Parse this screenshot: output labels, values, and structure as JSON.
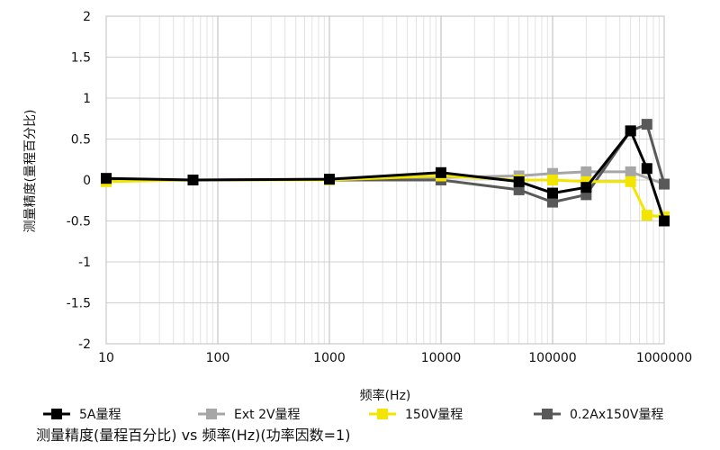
{
  "chart_data": {
    "type": "line",
    "xscale": "log",
    "caption": "测量精度(量程百分比) vs 频率(Hz)(功率因数=1)",
    "xlabel": "频率(Hz)",
    "ylabel": "测量精度(量程百分比)",
    "xlim": [
      10,
      1000000
    ],
    "ylim": [
      -2,
      2
    ],
    "yticks": [
      2,
      1.5,
      1,
      0.5,
      0,
      -0.5,
      -1,
      -1.5,
      -2
    ],
    "ytick_labels": [
      "2",
      "1.5",
      "1",
      "0.5",
      "0",
      "-0.5",
      "-1",
      "-1.5",
      "-2"
    ],
    "xticks": [
      10,
      100,
      1000,
      10000,
      100000,
      1000000
    ],
    "xtick_labels": [
      "10",
      "100",
      "1000",
      "10000",
      "100000",
      "1000000"
    ],
    "grid": true,
    "legend_position": "bottom",
    "series": [
      {
        "name": "Ext 2V量程",
        "color": "#a6a6a6",
        "x": [
          10,
          60,
          1000,
          10000,
          50000,
          100000,
          200000,
          500000,
          1000000
        ],
        "y": [
          0.01,
          0.0,
          0.01,
          0.03,
          0.05,
          0.08,
          0.1,
          0.1,
          -0.05
        ]
      },
      {
        "name": "0.2Ax150V量程",
        "color": "#595959",
        "x": [
          10,
          60,
          1000,
          10000,
          50000,
          100000,
          200000,
          500000,
          700000,
          1000000
        ],
        "y": [
          0.0,
          0.0,
          0.0,
          0.0,
          -0.12,
          -0.27,
          -0.18,
          0.6,
          0.68,
          -0.05
        ]
      },
      {
        "name": "150V量程",
        "color": "#f2e600",
        "x": [
          10,
          60,
          1000,
          10000,
          50000,
          100000,
          200000,
          500000,
          700000,
          1000000
        ],
        "y": [
          -0.02,
          0.0,
          0.0,
          0.05,
          0.0,
          0.0,
          -0.02,
          -0.02,
          -0.43,
          -0.45
        ]
      },
      {
        "name": "5A量程",
        "color": "#000000",
        "x": [
          10,
          60,
          1000,
          10000,
          50000,
          100000,
          200000,
          500000,
          700000,
          1000000
        ],
        "y": [
          0.02,
          0.0,
          0.01,
          0.09,
          -0.02,
          -0.16,
          -0.09,
          0.6,
          0.14,
          -0.5
        ]
      }
    ],
    "legend": [
      {
        "name": "5A量程",
        "color": "#000000"
      },
      {
        "name": "Ext 2V量程",
        "color": "#a6a6a6"
      },
      {
        "name": "150V量程",
        "color": "#f2e600"
      },
      {
        "name": "0.2Ax150V量程",
        "color": "#595959"
      }
    ]
  }
}
